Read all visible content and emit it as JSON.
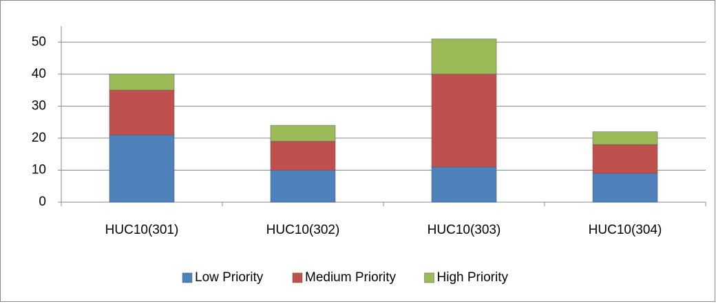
{
  "chart_data": {
    "type": "stacked_bar",
    "categories": [
      "HUC10(301)",
      "HUC10(302)",
      "HUC10(303)",
      "HUC10(304)"
    ],
    "series": [
      {
        "name": "Low Priority",
        "color": "#4f81bd",
        "values": [
          21,
          10,
          11,
          9
        ]
      },
      {
        "name": "Medium Priority",
        "color": "#c0504d",
        "values": [
          14,
          9,
          29,
          9
        ]
      },
      {
        "name": "High Priority",
        "color": "#9bbb59",
        "values": [
          5,
          5,
          11,
          4
        ]
      }
    ],
    "ylim": [
      0,
      55
    ],
    "yticks": [
      0,
      10,
      20,
      30,
      40,
      50
    ],
    "grid": true,
    "legend": "bottom"
  }
}
